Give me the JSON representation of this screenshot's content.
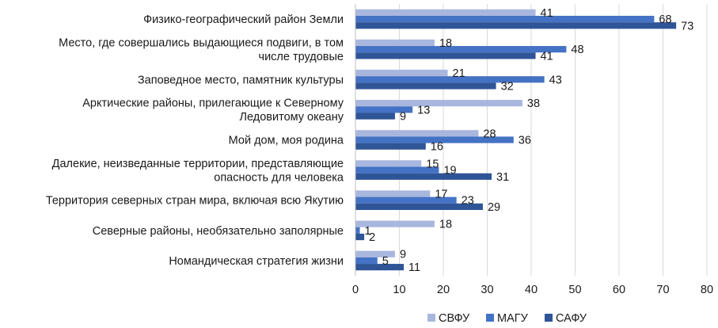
{
  "chart_data": {
    "type": "bar",
    "orientation": "horizontal",
    "categories": [
      [
        "Физико-географический район Земли"
      ],
      [
        "Место, где совершались выдающиеся подвиги, в том",
        "числе трудовые"
      ],
      [
        "Заповедное место, памятник культуры"
      ],
      [
        "Арктические районы, прилегающие к Северному",
        "Ледовитому океану"
      ],
      [
        "Мой дом, моя родина"
      ],
      [
        "Далекие, неизведанные территории, представляющие",
        "опасность для человека"
      ],
      [
        "Территория северных стран мира, включая всю Якутию"
      ],
      [
        "Северные районы, необязательно заполярные"
      ],
      [
        "Номандическая стратегия жизни"
      ]
    ],
    "series": [
      {
        "name": "СВФУ",
        "color": "#a9b7df",
        "values": [
          41,
          18,
          21,
          38,
          28,
          15,
          17,
          18,
          9
        ]
      },
      {
        "name": "МАГУ",
        "color": "#4472c4",
        "values": [
          68,
          48,
          43,
          13,
          36,
          19,
          23,
          1,
          5
        ]
      },
      {
        "name": "САФУ",
        "color": "#2f5597",
        "values": [
          73,
          41,
          32,
          9,
          16,
          31,
          29,
          2,
          11
        ]
      }
    ],
    "xlim": [
      0,
      80
    ],
    "xticks": [
      0,
      10,
      20,
      30,
      40,
      50,
      60,
      70,
      80
    ],
    "grid": true,
    "legend": "bottom",
    "title": "",
    "xlabel": "",
    "ylabel": ""
  }
}
